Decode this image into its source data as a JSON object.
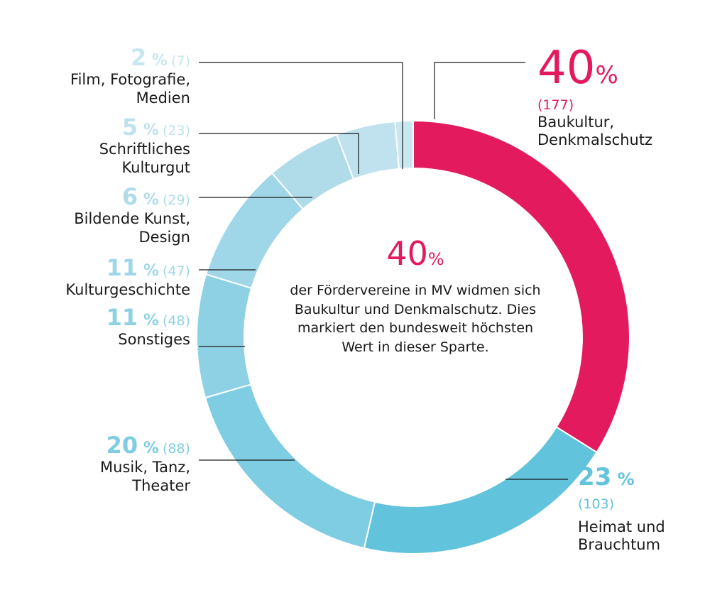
{
  "chart_data": {
    "type": "pie",
    "variant": "donut",
    "center": {
      "value": "40",
      "unit": "%",
      "text": "der Fördervereine in MV widmen sich Baukultur und Denkmalschutz. Dies markiert den bundesweit höchsten Wert in dieser Sparte."
    },
    "slices": [
      {
        "label": "Baukultur,\nDenkmalschutz",
        "percent": 40,
        "count": 177,
        "color": "#e31b5e"
      },
      {
        "label": "Heimat und\nBrauchtum",
        "percent": 23,
        "count": 103,
        "color": "#62c3dd"
      },
      {
        "label": "Musik, Tanz,\nTheater",
        "percent": 20,
        "count": 88,
        "color": "#7ecde2"
      },
      {
        "label": "Sonstiges",
        "percent": 11,
        "count": 48,
        "color": "#8fd1e4"
      },
      {
        "label": "Kulturgeschichte",
        "percent": 11,
        "count": 47,
        "color": "#a0d7e8"
      },
      {
        "label": "Bildende Kunst,\nDesign",
        "percent": 6,
        "count": 29,
        "color": "#b0dcea"
      },
      {
        "label": "Schriftliches\nKulturgut",
        "percent": 5,
        "count": 23,
        "color": "#bfe2ee"
      },
      {
        "label": "Film, Fotografie,\nMedien",
        "percent": 2,
        "count": 7,
        "color": "#c9e7f1"
      }
    ],
    "label_color": "#7ecde2",
    "highlight_color": "#e31b5e",
    "text_color": "#1a1a1a"
  }
}
